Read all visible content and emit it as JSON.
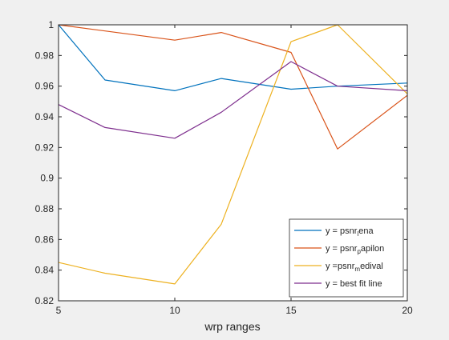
{
  "chart_data": {
    "type": "line",
    "xlabel": "wrp ranges",
    "ylabel": "",
    "xlim": [
      5,
      20
    ],
    "ylim": [
      0.82,
      1.0
    ],
    "xticks": [
      "5",
      "10",
      "15",
      "20"
    ],
    "yticks": [
      "0.82",
      "0.84",
      "0.86",
      "0.88",
      "0.9",
      "0.92",
      "0.94",
      "0.96",
      "0.98",
      "1"
    ],
    "x": [
      5,
      7,
      10,
      12,
      15,
      17,
      20
    ],
    "grid": false,
    "legend_position": "bottom-right",
    "series": [
      {
        "legend": {
          "pre": "y = psnr",
          "sub": "l",
          "post": "ena"
        },
        "color": "#0072BD",
        "values": [
          1.0,
          0.964,
          0.957,
          0.965,
          0.958,
          0.96,
          0.962
        ]
      },
      {
        "legend": {
          "pre": "y = psnr",
          "sub": "p",
          "post": "apilon"
        },
        "color": "#D95319",
        "values": [
          1.0,
          0.996,
          0.99,
          0.995,
          0.982,
          0.919,
          0.954
        ]
      },
      {
        "legend": {
          "pre": "y =psnr",
          "sub": "m",
          "post": "edival"
        },
        "color": "#EDB120",
        "values": [
          0.845,
          0.838,
          0.831,
          0.87,
          0.989,
          1.0,
          0.955
        ]
      },
      {
        "legend": {
          "pre": "y = best fit line",
          "sub": "",
          "post": ""
        },
        "color": "#7E2F8E",
        "values": [
          0.948,
          0.933,
          0.926,
          0.943,
          0.976,
          0.96,
          0.957
        ]
      }
    ]
  }
}
